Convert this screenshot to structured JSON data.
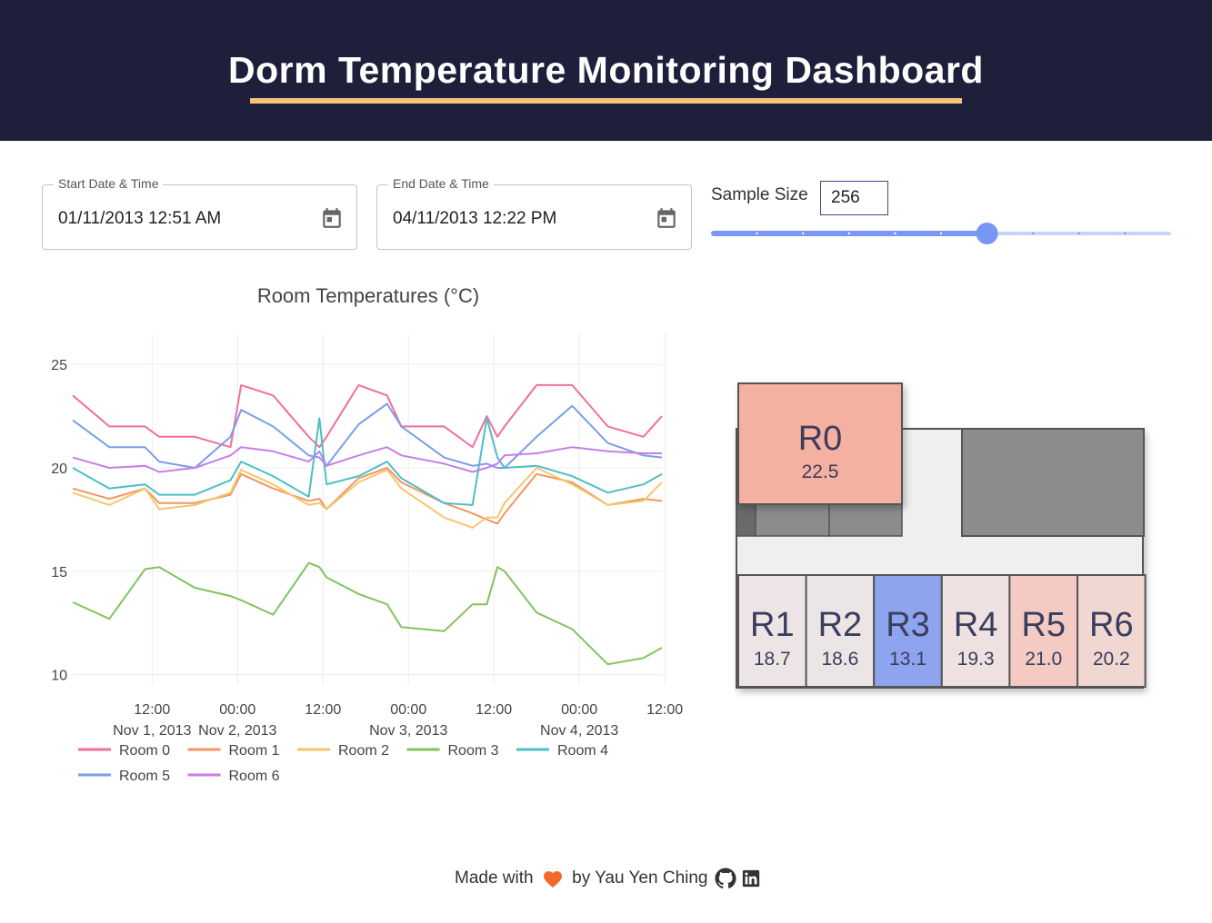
{
  "header": {
    "title": "Dorm Temperature Monitoring Dashboard"
  },
  "controls": {
    "start": {
      "label": "Start Date & Time",
      "value": "01/11/2013 12:51 AM",
      "icon": "calendar-icon"
    },
    "end": {
      "label": "End Date & Time",
      "value": "04/11/2013 12:22 PM",
      "icon": "calendar-icon"
    },
    "sample": {
      "label": "Sample Size",
      "value": "256",
      "slider_fraction": 0.6
    }
  },
  "chart_data": {
    "type": "line",
    "title": "Room Temperatures (°C)",
    "xlabel": "",
    "ylabel": "",
    "ylim": [
      9.5,
      26.5
    ],
    "yticks": [
      "25",
      "20",
      "15",
      "10"
    ],
    "xtick_times": [
      "12:00",
      "00:00",
      "12:00",
      "00:00",
      "12:00",
      "00:00",
      "12:00"
    ],
    "xtick_dates": [
      "Nov 1, 2013",
      "Nov 2, 2013",
      "Nov 3, 2013",
      "Nov 4, 2013"
    ],
    "x_hours_range": [
      0.85,
      83.6
    ],
    "x": [
      0.85,
      6,
      11,
      13,
      18,
      23,
      24.5,
      29,
      34,
      35.5,
      36.5,
      41,
      45,
      47,
      53,
      57,
      59,
      60.5,
      61.5,
      66,
      71,
      76,
      81,
      83.6
    ],
    "series": [
      {
        "name": "Room 0",
        "color": "#f06f9e",
        "values": [
          23.5,
          22.0,
          22.0,
          21.5,
          21.5,
          21.0,
          24.0,
          23.5,
          21.5,
          21.0,
          21.5,
          24.0,
          23.5,
          22.0,
          22.0,
          21.0,
          22.5,
          21.5,
          22.0,
          24.0,
          24.0,
          22.0,
          21.5,
          22.5
        ]
      },
      {
        "name": "Room 1",
        "color": "#f39562",
        "values": [
          19.0,
          18.5,
          19.0,
          18.3,
          18.3,
          18.7,
          19.7,
          19.0,
          18.4,
          18.5,
          18.0,
          19.5,
          20.0,
          19.3,
          18.3,
          17.8,
          17.5,
          17.3,
          17.8,
          19.7,
          19.3,
          18.2,
          18.5,
          18.4
        ]
      },
      {
        "name": "Room 2",
        "color": "#f5c66e",
        "values": [
          18.8,
          18.2,
          19.0,
          18.0,
          18.2,
          18.8,
          19.9,
          19.2,
          18.2,
          18.3,
          18.0,
          19.3,
          19.9,
          19.0,
          17.6,
          17.1,
          17.6,
          17.6,
          18.3,
          20.0,
          19.2,
          18.2,
          18.4,
          19.3
        ]
      },
      {
        "name": "Room 3",
        "color": "#82c35d",
        "values": [
          13.5,
          12.7,
          15.1,
          15.2,
          14.2,
          13.8,
          13.6,
          12.9,
          15.4,
          15.2,
          14.7,
          13.9,
          13.4,
          12.3,
          12.1,
          13.4,
          13.4,
          15.2,
          15.0,
          13.0,
          12.2,
          10.5,
          10.8,
          11.3
        ]
      },
      {
        "name": "Room 4",
        "color": "#4cbfc4",
        "values": [
          20.0,
          19.0,
          19.2,
          18.7,
          18.7,
          19.4,
          20.3,
          19.6,
          18.6,
          22.4,
          19.2,
          19.6,
          20.3,
          19.5,
          18.3,
          18.2,
          22.4,
          20.5,
          20.0,
          20.1,
          19.6,
          18.8,
          19.2,
          19.7
        ]
      },
      {
        "name": "Room 5",
        "color": "#7a9ee8",
        "values": [
          22.3,
          21.0,
          21.0,
          20.3,
          20.0,
          21.5,
          22.8,
          22.0,
          20.6,
          20.5,
          20.1,
          22.1,
          23.1,
          22.0,
          20.5,
          20.1,
          20.2,
          20.0,
          20.0,
          21.5,
          23.0,
          21.2,
          20.6,
          20.5
        ]
      },
      {
        "name": "Room 6",
        "color": "#c77ee8",
        "values": [
          20.5,
          20.0,
          20.1,
          19.8,
          20.0,
          20.6,
          21.0,
          20.8,
          20.3,
          20.8,
          20.1,
          20.6,
          21.0,
          20.6,
          20.2,
          19.8,
          20.0,
          20.2,
          20.6,
          20.7,
          21.0,
          20.8,
          20.7,
          20.7
        ]
      }
    ]
  },
  "floorplan": {
    "rooms": [
      {
        "id": "R0",
        "value": "22.5",
        "color": "#f4b0a1"
      },
      {
        "id": "R1",
        "value": "18.7",
        "color": "#ede5e5"
      },
      {
        "id": "R2",
        "value": "18.6",
        "color": "#ebe5e5"
      },
      {
        "id": "R3",
        "value": "13.1",
        "color": "#8fa4ef"
      },
      {
        "id": "R4",
        "value": "19.3",
        "color": "#efe1e0"
      },
      {
        "id": "R5",
        "value": "21.0",
        "color": "#f3cbc2"
      },
      {
        "id": "R6",
        "value": "20.2",
        "color": "#f1d7d2"
      }
    ]
  },
  "footer": {
    "made_with": "Made with",
    "by": "by Yau Yen Ching",
    "heart_icon": "heart-icon",
    "github_icon": "github-icon",
    "linkedin_icon": "linkedin-icon"
  }
}
